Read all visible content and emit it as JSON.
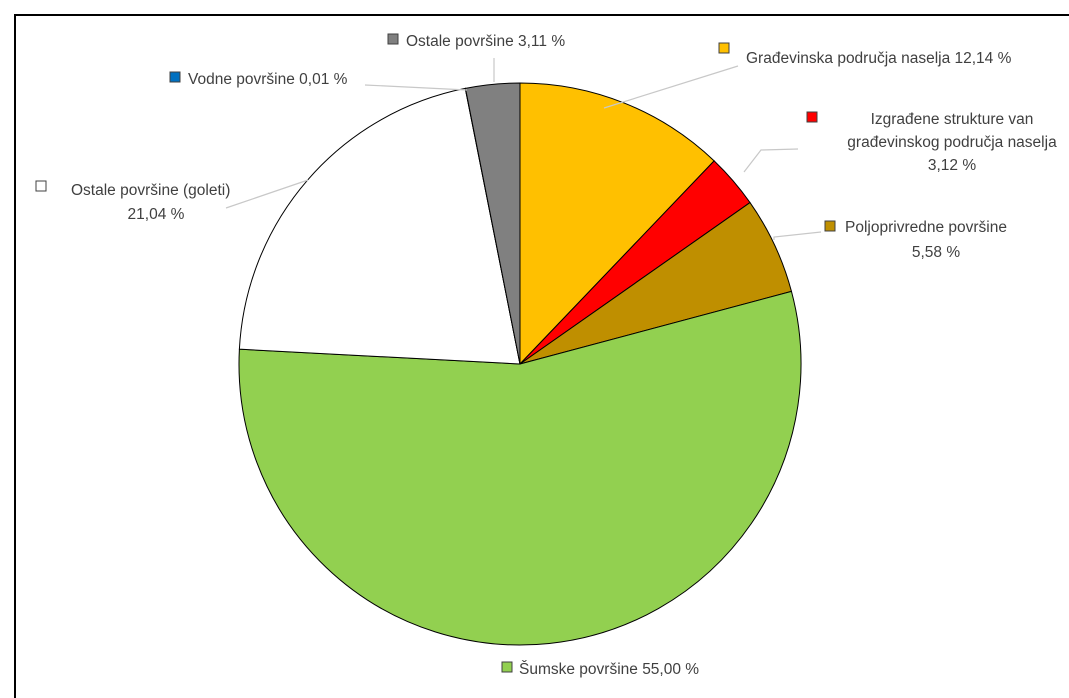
{
  "chart_data": {
    "type": "pie",
    "slices": [
      {
        "label": "Građevinska područja naselja",
        "value": 12.14,
        "value_label": "12,14 %",
        "color": "#FFC000"
      },
      {
        "label": "Izgrađene strukture van građevinskog područja naselja",
        "value": 3.12,
        "value_label": "3,12 %",
        "color": "#FF0000"
      },
      {
        "label": "Poljoprivredne površine",
        "value": 5.58,
        "value_label": "5,58 %",
        "color": "#BF8F00"
      },
      {
        "label": "Šumske površine",
        "value": 55.0,
        "value_label": "55,00 %",
        "color": "#92D050"
      },
      {
        "label": "Ostale površine (goleti)",
        "value": 21.04,
        "value_label": "21,04 %",
        "color": "#FFFFFF"
      },
      {
        "label": "Vodne površine",
        "value": 0.01,
        "value_label": "0,01 %",
        "color": "#0070C0"
      },
      {
        "label": "Ostale površine",
        "value": 3.11,
        "value_label": "3,11 %",
        "color": "#808080"
      }
    ],
    "start_angle_deg": 0,
    "direction": "clockwise",
    "label_lines": [
      "Ostale površine 3,11 %",
      "Građevinska područja naselja 12,14 %",
      "Vodne površine 0,01 %",
      "Izgrađene strukture van",
      "građevinskog područja naselja",
      "3,12 %",
      "Ostale površine (goleti)",
      "21,04 %",
      "Poljoprivredne površine",
      "5,58 %",
      "Šumske površine 55,00 %"
    ]
  }
}
